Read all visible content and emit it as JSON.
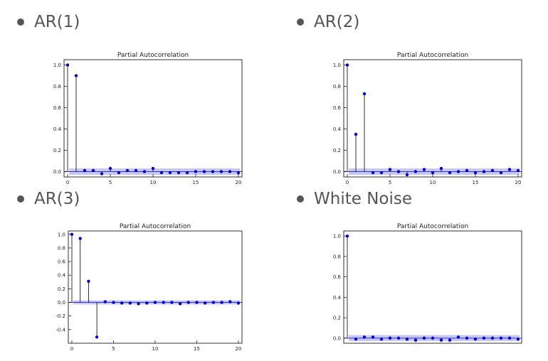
{
  "slides": [
    {
      "heading": "AR(1)"
    },
    {
      "heading": "AR(2)"
    },
    {
      "heading": "AR(3)"
    },
    {
      "heading": "White Noise"
    }
  ],
  "chart_data": [
    {
      "type": "line",
      "title": "Partial Autocorrelation",
      "xlim": [
        0,
        20
      ],
      "ylim": [
        -0.05,
        1.05
      ],
      "xticks": [
        0,
        5,
        10,
        15,
        20
      ],
      "yticks": [
        0.0,
        0.2,
        0.4,
        0.6,
        0.8,
        1.0
      ],
      "lags": [
        0,
        1,
        2,
        3,
        4,
        5,
        6,
        7,
        8,
        9,
        10,
        11,
        12,
        13,
        14,
        15,
        16,
        17,
        18,
        19,
        20
      ],
      "values": [
        1.0,
        0.9,
        0.01,
        0.01,
        -0.02,
        0.03,
        -0.01,
        0.01,
        0.01,
        0.0,
        0.03,
        -0.01,
        -0.01,
        -0.01,
        -0.01,
        0.0,
        0.0,
        0.0,
        0.0,
        0.0,
        -0.01
      ],
      "conf_band": 0.03,
      "colors": {
        "stem": "#000000",
        "marker": "#0000cc",
        "band": "#9999ee"
      }
    },
    {
      "type": "line",
      "title": "Partial Autocorrelation",
      "xlim": [
        0,
        20
      ],
      "ylim": [
        -0.05,
        1.05
      ],
      "xticks": [
        0,
        5,
        10,
        15,
        20
      ],
      "yticks": [
        0.0,
        0.2,
        0.4,
        0.6,
        0.8,
        1.0
      ],
      "lags": [
        0,
        1,
        2,
        3,
        4,
        5,
        6,
        7,
        8,
        9,
        10,
        11,
        12,
        13,
        14,
        15,
        16,
        17,
        18,
        19,
        20
      ],
      "values": [
        1.0,
        0.35,
        0.73,
        -0.01,
        -0.01,
        0.02,
        0.0,
        -0.03,
        0.0,
        0.02,
        -0.01,
        0.03,
        -0.01,
        0.0,
        0.01,
        -0.01,
        0.0,
        0.01,
        -0.01,
        0.02,
        0.01
      ],
      "conf_band": 0.03,
      "colors": {
        "stem": "#000000",
        "marker": "#0000cc",
        "band": "#9999ee"
      }
    },
    {
      "type": "line",
      "title": "Partial Autocorrelation",
      "xlim": [
        0,
        20
      ],
      "ylim": [
        -0.6,
        1.05
      ],
      "xticks": [
        0,
        5,
        10,
        15,
        20
      ],
      "yticks": [
        -0.4,
        -0.2,
        0.0,
        0.2,
        0.4,
        0.6,
        0.8,
        1.0
      ],
      "lags": [
        0,
        1,
        2,
        3,
        4,
        5,
        6,
        7,
        8,
        9,
        10,
        11,
        12,
        13,
        14,
        15,
        16,
        17,
        18,
        19,
        20
      ],
      "values": [
        1.0,
        0.94,
        0.31,
        -0.51,
        0.01,
        0.0,
        -0.01,
        -0.01,
        -0.02,
        -0.01,
        0.0,
        0.0,
        0.0,
        -0.02,
        0.0,
        0.0,
        -0.01,
        0.0,
        0.0,
        0.01,
        -0.01
      ],
      "conf_band": 0.03,
      "colors": {
        "stem": "#000000",
        "marker": "#0000cc",
        "band": "#9999ee"
      }
    },
    {
      "type": "line",
      "title": "Partial Autocorrelation",
      "xlim": [
        0,
        20
      ],
      "ylim": [
        -0.05,
        1.05
      ],
      "xticks": [],
      "yticks": [
        0.0,
        0.2,
        0.4,
        0.6,
        0.8,
        1.0
      ],
      "lags": [
        0,
        1,
        2,
        3,
        4,
        5,
        6,
        7,
        8,
        9,
        10,
        11,
        12,
        13,
        14,
        15,
        16,
        17,
        18,
        19,
        20
      ],
      "values": [
        1.0,
        -0.01,
        0.01,
        0.01,
        -0.01,
        0.0,
        0.0,
        -0.01,
        -0.02,
        0.0,
        0.0,
        -0.02,
        -0.02,
        0.01,
        0.0,
        -0.01,
        0.0,
        0.0,
        0.0,
        0.0,
        -0.01
      ],
      "conf_band": 0.03,
      "colors": {
        "stem": "#000000",
        "marker": "#0000cc",
        "band": "#9999ee"
      }
    }
  ]
}
